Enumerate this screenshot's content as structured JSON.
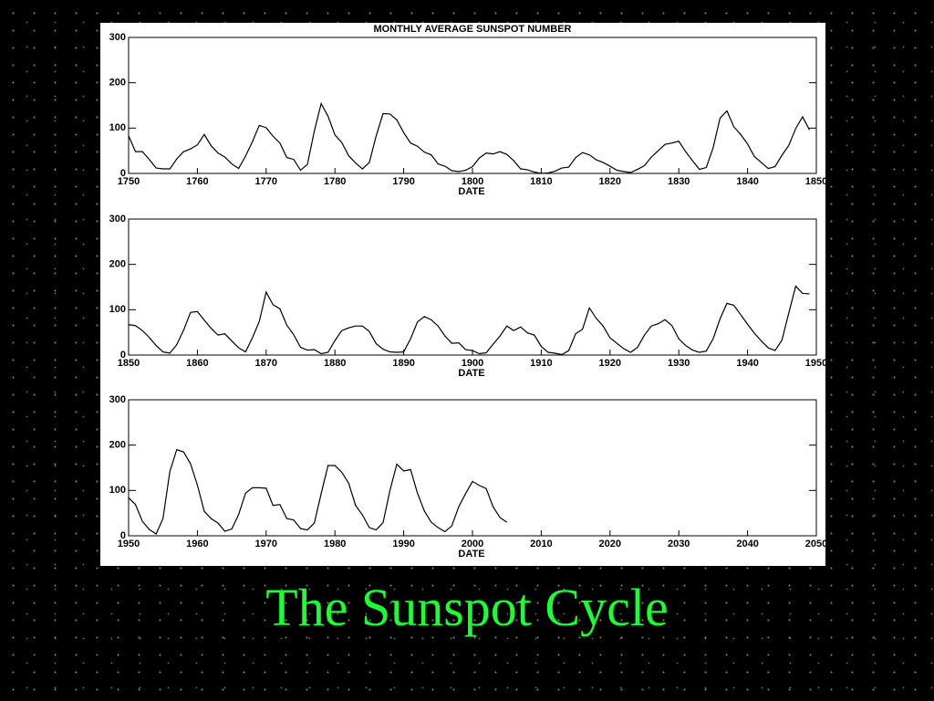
{
  "slide_title": "The Sunspot Cycle",
  "chart_data": [
    {
      "type": "line",
      "title": "MONTHLY AVERAGE SUNSPOT NUMBER",
      "x_label": "DATE",
      "xlim": [
        1750,
        1850
      ],
      "xticks": [
        1750,
        1760,
        1770,
        1780,
        1790,
        1800,
        1810,
        1820,
        1830,
        1840,
        1850
      ],
      "ylim": [
        0,
        300
      ],
      "yticks": [
        0,
        100,
        200,
        300
      ],
      "grid": false,
      "color": "#000000",
      "x": [
        1750,
        1751,
        1752,
        1753,
        1754,
        1755,
        1756,
        1757,
        1758,
        1759,
        1760,
        1761,
        1762,
        1763,
        1764,
        1765,
        1766,
        1767,
        1768,
        1769,
        1770,
        1771,
        1772,
        1773,
        1774,
        1775,
        1776,
        1777,
        1778,
        1779,
        1780,
        1781,
        1782,
        1783,
        1784,
        1785,
        1786,
        1787,
        1788,
        1789,
        1790,
        1791,
        1792,
        1793,
        1794,
        1795,
        1796,
        1797,
        1798,
        1799,
        1800,
        1801,
        1802,
        1803,
        1804,
        1805,
        1806,
        1807,
        1808,
        1809,
        1810,
        1811,
        1812,
        1813,
        1814,
        1815,
        1816,
        1817,
        1818,
        1819,
        1820,
        1821,
        1822,
        1823,
        1824,
        1825,
        1826,
        1827,
        1828,
        1829,
        1830,
        1831,
        1832,
        1833,
        1834,
        1835,
        1836,
        1837,
        1838,
        1839,
        1840,
        1841,
        1842,
        1843,
        1844,
        1845,
        1846,
        1847,
        1848,
        1849
      ],
      "values": [
        83,
        48,
        48,
        31,
        12,
        10,
        10,
        32,
        48,
        54,
        63,
        86,
        61,
        45,
        36,
        21,
        11,
        38,
        70,
        106,
        101,
        82,
        67,
        35,
        31,
        7,
        20,
        93,
        154,
        126,
        85,
        68,
        39,
        23,
        10,
        24,
        83,
        132,
        131,
        118,
        90,
        67,
        60,
        47,
        41,
        21,
        16,
        6,
        4,
        7,
        15,
        34,
        45,
        43,
        48,
        42,
        28,
        10,
        8,
        3,
        0,
        1,
        5,
        12,
        14,
        35,
        46,
        41,
        30,
        24,
        16,
        7,
        4,
        2,
        9,
        17,
        36,
        50,
        64,
        67,
        71,
        48,
        28,
        9,
        13,
        57,
        122,
        138,
        103,
        86,
        65,
        37,
        24,
        11,
        15,
        40,
        62,
        99,
        125,
        96
      ]
    },
    {
      "type": "line",
      "x_label": "DATE",
      "xlim": [
        1850,
        1950
      ],
      "xticks": [
        1850,
        1860,
        1870,
        1880,
        1890,
        1900,
        1910,
        1920,
        1930,
        1940,
        1950
      ],
      "ylim": [
        0,
        300
      ],
      "yticks": [
        0,
        100,
        200,
        300
      ],
      "grid": false,
      "color": "#000000",
      "x": [
        1850,
        1851,
        1852,
        1853,
        1854,
        1855,
        1856,
        1857,
        1858,
        1859,
        1860,
        1861,
        1862,
        1863,
        1864,
        1865,
        1866,
        1867,
        1868,
        1869,
        1870,
        1871,
        1872,
        1873,
        1874,
        1875,
        1876,
        1877,
        1878,
        1879,
        1880,
        1881,
        1882,
        1883,
        1884,
        1885,
        1886,
        1887,
        1888,
        1889,
        1890,
        1891,
        1892,
        1893,
        1894,
        1895,
        1896,
        1897,
        1898,
        1899,
        1900,
        1901,
        1902,
        1903,
        1904,
        1905,
        1906,
        1907,
        1908,
        1909,
        1910,
        1911,
        1912,
        1913,
        1914,
        1915,
        1916,
        1917,
        1918,
        1919,
        1920,
        1921,
        1922,
        1923,
        1924,
        1925,
        1926,
        1927,
        1928,
        1929,
        1930,
        1931,
        1932,
        1933,
        1934,
        1935,
        1936,
        1937,
        1938,
        1939,
        1940,
        1941,
        1942,
        1943,
        1944,
        1945,
        1946,
        1947,
        1948,
        1949
      ],
      "values": [
        67,
        65,
        54,
        39,
        21,
        7,
        4,
        23,
        55,
        94,
        96,
        77,
        59,
        44,
        47,
        31,
        16,
        7,
        38,
        74,
        139,
        111,
        102,
        66,
        45,
        17,
        11,
        12,
        3,
        6,
        32,
        54,
        60,
        64,
        64,
        52,
        25,
        13,
        7,
        6,
        7,
        36,
        73,
        85,
        78,
        64,
        42,
        26,
        27,
        12,
        10,
        3,
        5,
        24,
        42,
        64,
        54,
        62,
        49,
        44,
        19,
        6,
        4,
        1,
        10,
        47,
        57,
        104,
        81,
        64,
        38,
        26,
        14,
        6,
        17,
        44,
        64,
        69,
        78,
        65,
        36,
        21,
        11,
        6,
        9,
        36,
        80,
        114,
        110,
        89,
        68,
        48,
        31,
        16,
        10,
        33,
        93,
        152,
        136,
        135
      ]
    },
    {
      "type": "line",
      "x_label": "DATE",
      "xlim": [
        1950,
        2050
      ],
      "xticks": [
        1950,
        1960,
        1970,
        1980,
        1990,
        2000,
        2010,
        2020,
        2030,
        2040,
        2050
      ],
      "ylim": [
        0,
        300
      ],
      "yticks": [
        0,
        100,
        200,
        300
      ],
      "grid": false,
      "color": "#000000",
      "x": [
        1950,
        1951,
        1952,
        1953,
        1954,
        1955,
        1956,
        1957,
        1958,
        1959,
        1960,
        1961,
        1962,
        1963,
        1964,
        1965,
        1966,
        1967,
        1968,
        1969,
        1970,
        1971,
        1972,
        1973,
        1974,
        1975,
        1976,
        1977,
        1978,
        1979,
        1980,
        1981,
        1982,
        1983,
        1984,
        1985,
        1986,
        1987,
        1988,
        1989,
        1990,
        1991,
        1992,
        1993,
        1994,
        1995,
        1996,
        1997,
        1998,
        1999,
        2000,
        2001,
        2002,
        2003,
        2004,
        2005
      ],
      "values": [
        84,
        69,
        32,
        14,
        4,
        38,
        142,
        190,
        185,
        159,
        112,
        54,
        38,
        28,
        10,
        15,
        47,
        94,
        106,
        106,
        105,
        67,
        69,
        38,
        35,
        16,
        13,
        28,
        93,
        155,
        155,
        140,
        116,
        67,
        46,
        18,
        13,
        29,
        100,
        158,
        143,
        146,
        94,
        55,
        30,
        18,
        9,
        22,
        64,
        93,
        120,
        111,
        104,
        64,
        40,
        30
      ]
    }
  ]
}
